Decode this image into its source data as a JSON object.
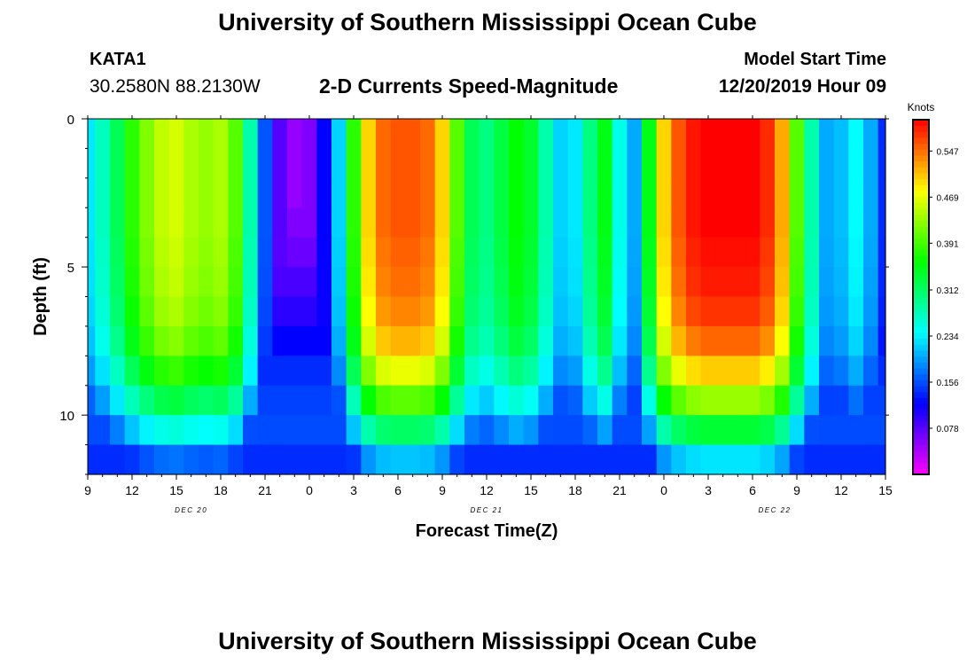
{
  "header": {
    "title": "University of Southern Mississippi Ocean Cube",
    "station_id": "KATA1",
    "station_coords": "30.2580N 88.2130W",
    "chart_title": "2-D Currents Speed-Magnitude",
    "model_start_label": "Model Start Time",
    "model_start_value": "12/20/2019 Hour 09"
  },
  "footer": {
    "title": "University of Southern Mississippi Ocean Cube"
  },
  "chart_data": {
    "type": "heatmap",
    "title": "2-D Currents Speed-Magnitude",
    "xlabel": "Forecast Time(Z)",
    "ylabel": "Depth (ft)",
    "x_range_hours": [
      0,
      54
    ],
    "x_tick_labels": [
      "9",
      "12",
      "15",
      "18",
      "21",
      "0",
      "3",
      "6",
      "9",
      "12",
      "15",
      "18",
      "21",
      "0",
      "3",
      "6",
      "9",
      "12",
      "15"
    ],
    "x_tick_interval_hours": 3,
    "date_labels": [
      {
        "text": "DEC 20",
        "hour": 7
      },
      {
        "text": "DEC 21",
        "hour": 27
      },
      {
        "text": "DEC 22",
        "hour": 46.5
      }
    ],
    "ylim": [
      0,
      12
    ],
    "y_reversed": true,
    "y_ticks": [
      0,
      5,
      10
    ],
    "colorbar": {
      "unit": "Knots",
      "min": 0,
      "max": 0.6,
      "ticks": [
        "0.547",
        "0.469",
        "0.391",
        "0.312",
        "0.234",
        "0.156",
        "0.078"
      ],
      "tick_values": [
        0.547,
        0.469,
        0.391,
        0.312,
        0.234,
        0.156,
        0.078
      ]
    },
    "depth_levels_ft": [
      0.5,
      1.5,
      2.5,
      3.5,
      4.5,
      5.5,
      6.5,
      7.5,
      8.5,
      9.5,
      10.5,
      11.5
    ],
    "time_step_hours": 1,
    "surface_speed_knots": [
      0.23,
      0.27,
      0.32,
      0.38,
      0.42,
      0.45,
      0.46,
      0.44,
      0.43,
      0.44,
      0.4,
      0.28,
      0.16,
      0.08,
      0.05,
      0.06,
      0.12,
      0.22,
      0.38,
      0.5,
      0.55,
      0.56,
      0.56,
      0.55,
      0.5,
      0.4,
      0.32,
      0.3,
      0.33,
      0.36,
      0.34,
      0.28,
      0.22,
      0.23,
      0.3,
      0.35,
      0.25,
      0.2,
      0.35,
      0.5,
      0.56,
      0.59,
      0.6,
      0.6,
      0.6,
      0.6,
      0.58,
      0.52,
      0.4,
      0.28,
      0.2,
      0.21,
      0.24,
      0.2,
      0.14
    ],
    "depth_factor": [
      1.0,
      1.0,
      1.0,
      1.0,
      0.99,
      0.98,
      0.96,
      0.92,
      0.84,
      0.72,
      0.56,
      0.38
    ],
    "bottom_speed_min_knots": [
      0.035,
      0.04,
      0.05,
      0.06,
      0.07,
      0.085,
      0.1,
      0.12,
      0.14,
      0.15,
      0.155,
      0.14
    ]
  }
}
